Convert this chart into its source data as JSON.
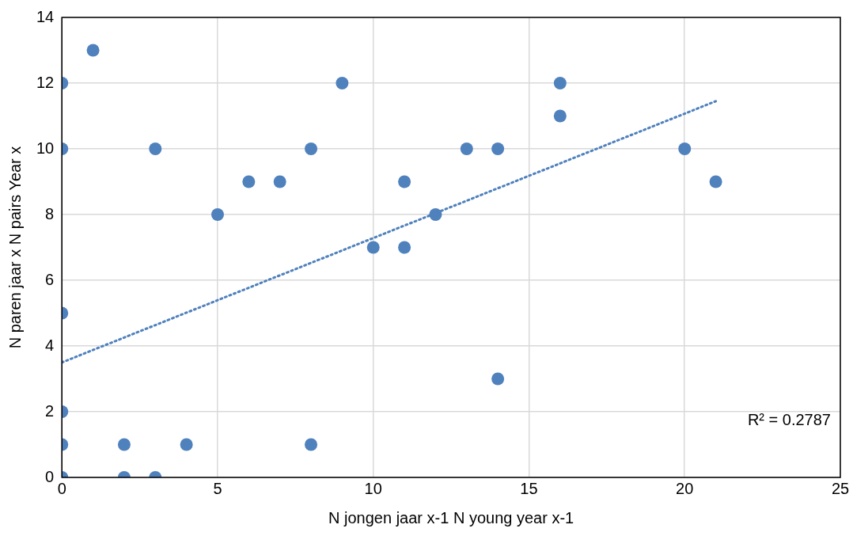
{
  "chart_data": {
    "type": "scatter",
    "xlabel": "N jongen jaar x-1 N young year x-1",
    "ylabel": "N paren jaar x N pairs Year x",
    "xlim": [
      0,
      25
    ],
    "xticks": [
      0,
      5,
      10,
      15,
      20,
      25
    ],
    "ylim": [
      0,
      14
    ],
    "yticks": [
      0,
      2,
      4,
      6,
      8,
      10,
      12,
      14
    ],
    "grid": true,
    "legend": false,
    "marker": "circle",
    "series": [
      {
        "color": "#4f81bd",
        "x": [
          0,
          0,
          0,
          0,
          0,
          0,
          1,
          2,
          2,
          3,
          3,
          4,
          5,
          6,
          7,
          8,
          8,
          9,
          10,
          11,
          11,
          12,
          13,
          14,
          14,
          16,
          16,
          20,
          21
        ],
        "values": [
          12,
          10,
          5,
          2,
          1,
          0,
          13,
          1,
          0,
          10,
          0,
          1,
          8,
          9,
          9,
          10,
          1,
          12,
          7,
          9,
          7,
          8,
          10,
          10,
          3,
          12,
          11,
          10,
          9
        ]
      },
      {
        "type": "line",
        "color": "#4f81bd",
        "line_style": "dotted",
        "marker": "none",
        "x": [
          0,
          21
        ],
        "values": [
          3.5,
          11.45
        ]
      }
    ],
    "annotations": [
      "R² = 0.2787"
    ]
  }
}
